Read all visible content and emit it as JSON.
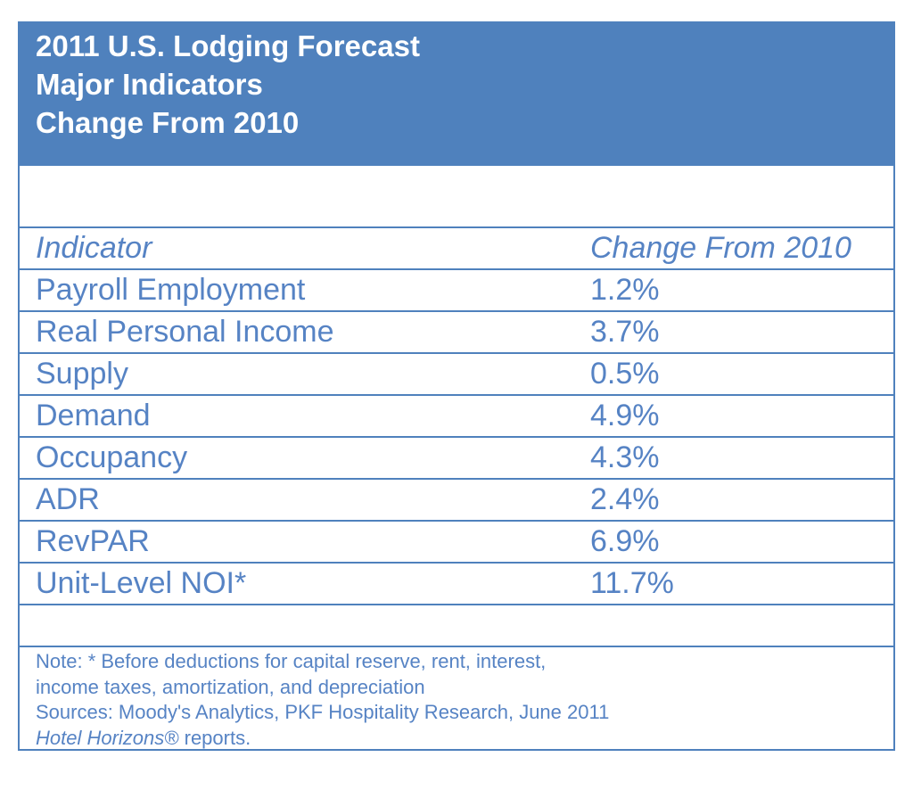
{
  "title_lines": [
    "2011 U.S. Lodging Forecast",
    "Major Indicators",
    "Change From 2010"
  ],
  "colors": {
    "header_bg": "#4f81bd",
    "text": "#5683c4",
    "border": "#4f81bd"
  },
  "columns": [
    "Indicator",
    "Change From 2010"
  ],
  "rows": [
    {
      "indicator": "Payroll Employment",
      "change": "1.2%"
    },
    {
      "indicator": "Real Personal Income",
      "change": "3.7%"
    },
    {
      "indicator": "Supply",
      "change": "0.5%"
    },
    {
      "indicator": "Demand",
      "change": "4.9%"
    },
    {
      "indicator": "Occupancy",
      "change": "4.3%"
    },
    {
      "indicator": "ADR",
      "change": "2.4%"
    },
    {
      "indicator": "RevPAR",
      "change": "6.9%"
    },
    {
      "indicator": "Unit-Level NOI*",
      "change": "11.7%"
    }
  ],
  "note": {
    "line1": "Note: * Before deductions for capital reserve, rent, interest,",
    "line2": "income taxes, amortization, and depreciation",
    "line3": "Sources: Moody's Analytics, PKF Hospitality Research, June 2011",
    "line4_italic": "Hotel Horizons®",
    "line4_rest": " reports."
  }
}
